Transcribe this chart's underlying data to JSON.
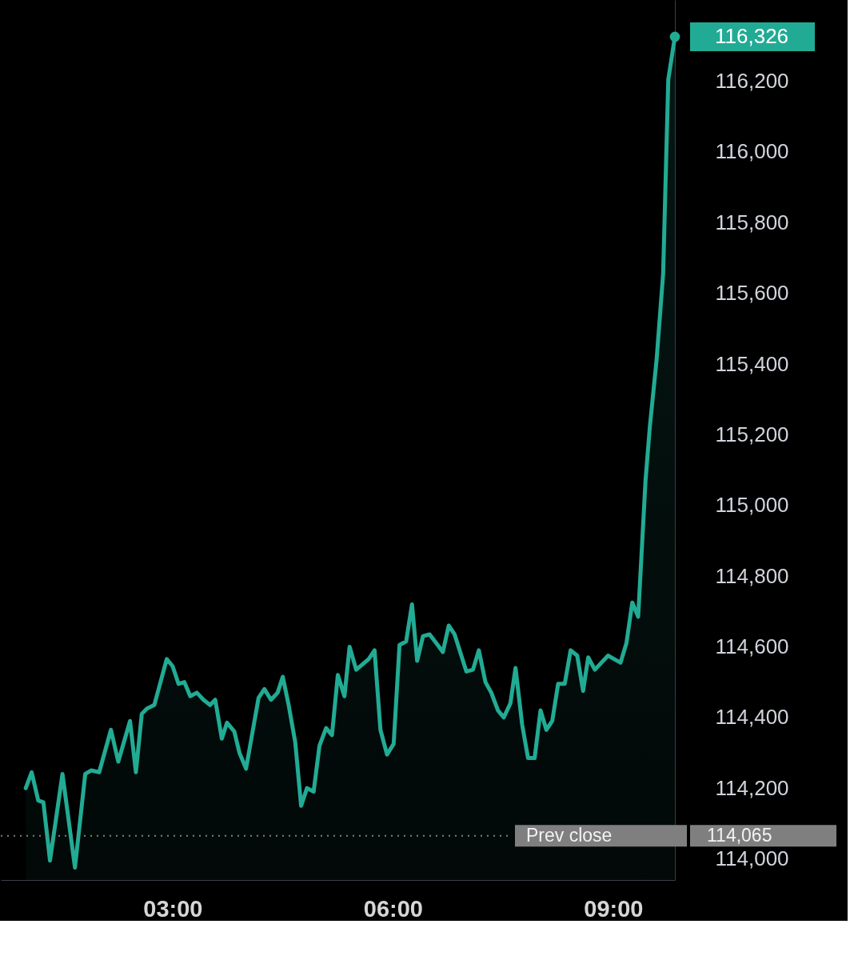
{
  "chart_data": {
    "type": "area",
    "x": [
      1.0,
      1.08,
      1.17,
      1.24,
      1.33,
      1.5,
      1.67,
      1.81,
      1.89,
      2.0,
      2.16,
      2.26,
      2.42,
      2.5,
      2.58,
      2.65,
      2.75,
      2.92,
      3.0,
      3.08,
      3.16,
      3.24,
      3.33,
      3.42,
      3.51,
      3.58,
      3.67,
      3.74,
      3.84,
      3.91,
      4.0,
      4.17,
      4.25,
      4.34,
      4.43,
      4.5,
      4.58,
      4.67,
      4.75,
      4.83,
      4.92,
      5.0,
      5.09,
      5.17,
      5.25,
      5.34,
      5.41,
      5.5,
      5.67,
      5.75,
      5.83,
      5.92,
      6.01,
      6.09,
      6.18,
      6.26,
      6.33,
      6.41,
      6.5,
      6.61,
      6.68,
      6.76,
      6.84,
      7.0,
      7.09,
      7.17,
      7.26,
      7.34,
      7.43,
      7.51,
      7.6,
      7.67,
      7.76,
      7.84,
      7.93,
      8.01,
      8.09,
      8.17,
      8.25,
      8.34,
      8.42,
      8.51,
      8.59,
      8.66,
      8.75,
      8.93,
      9.1,
      9.18,
      9.26,
      9.34,
      9.44,
      9.5,
      9.59,
      9.68,
      9.75,
      9.84
    ],
    "series": [
      {
        "color": "#22ab94",
        "values": [
          114200,
          114245,
          114165,
          114160,
          113995,
          114240,
          113975,
          114240,
          114250,
          114245,
          114365,
          114275,
          114390,
          114245,
          114410,
          114425,
          114435,
          114565,
          114545,
          114495,
          114500,
          114460,
          114470,
          114450,
          114435,
          114450,
          114340,
          114385,
          114360,
          114300,
          114255,
          114455,
          114480,
          114450,
          114470,
          114515,
          114435,
          114330,
          114150,
          114200,
          114190,
          114320,
          114370,
          114350,
          114520,
          114460,
          114600,
          114535,
          114565,
          114590,
          114365,
          114295,
          114325,
          114605,
          114615,
          114720,
          114560,
          114630,
          114635,
          114605,
          114585,
          114660,
          114635,
          114530,
          114535,
          114590,
          114500,
          114470,
          114420,
          114400,
          114440,
          114540,
          114380,
          114285,
          114285,
          114420,
          114365,
          114390,
          114495,
          114495,
          114590,
          114575,
          114475,
          114570,
          114535,
          114575,
          114555,
          114610,
          114725,
          114685,
          115070,
          115225,
          115410,
          115655,
          116205,
          116326
        ]
      }
    ],
    "xlim": [
      0.66,
      9.84
    ],
    "xticks": [
      {
        "value": 3,
        "label": "03:00"
      },
      {
        "value": 6,
        "label": "06:00"
      },
      {
        "value": 9,
        "label": "09:00"
      }
    ],
    "ylim": [
      113940,
      116430
    ],
    "yticks": [
      {
        "value": 114000,
        "label": "114,000"
      },
      {
        "value": 114200,
        "label": "114,200"
      },
      {
        "value": 114400,
        "label": "114,400"
      },
      {
        "value": 114600,
        "label": "114,600"
      },
      {
        "value": 114800,
        "label": "114,800"
      },
      {
        "value": 115000,
        "label": "115,000"
      },
      {
        "value": 115200,
        "label": "115,200"
      },
      {
        "value": 115400,
        "label": "115,400"
      },
      {
        "value": 115600,
        "label": "115,600"
      },
      {
        "value": 115800,
        "label": "115,800"
      },
      {
        "value": 116000,
        "label": "116,000"
      },
      {
        "value": 116200,
        "label": "116,200"
      }
    ],
    "ref_lines": [
      {
        "axis": "y",
        "value": 114065,
        "label": "Prev close",
        "color": "#7f7f7f",
        "line_style": "dotted"
      }
    ],
    "annotations": [
      {
        "text": "116,326",
        "x": 9.84,
        "y": 116326
      },
      "114,065"
    ]
  }
}
